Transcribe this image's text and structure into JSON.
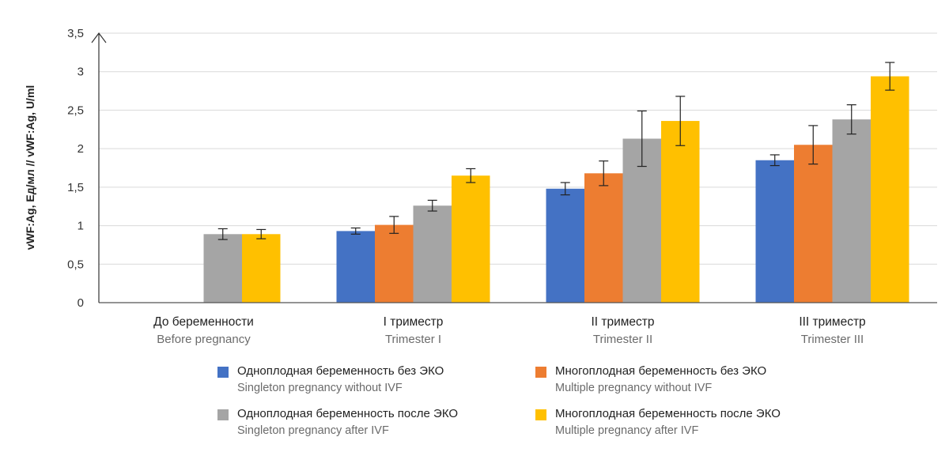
{
  "chart_data": {
    "type": "bar",
    "ylabel": "vWF:Ag, Ед/мл // vWF:Ag, U/ml",
    "ylim": [
      0,
      3.5
    ],
    "yticks": [
      "0",
      "0,5",
      "1",
      "1,5",
      "2",
      "2,5",
      "3",
      "3,5"
    ],
    "grid": true,
    "legend_position": "bottom",
    "categories": [
      {
        "ru": "До беременности",
        "en": "Before pregnancy"
      },
      {
        "ru": "I триместр",
        "en": "Trimester I"
      },
      {
        "ru": "II триместр",
        "en": "Trimester II"
      },
      {
        "ru": "III триместр",
        "en": "Trimester III"
      }
    ],
    "series": [
      {
        "name": "Одноплодная беременность без ЭКО",
        "name_en": "Singleton pregnancy without IVF",
        "color": "#4472c4",
        "values": [
          null,
          0.93,
          1.48,
          1.85
        ],
        "errors": [
          null,
          0.04,
          0.08,
          0.07
        ]
      },
      {
        "name": "Многоплодная беременность без ЭКО",
        "name_en": "Multiple pregnancy without IVF",
        "color": "#ed7d31",
        "values": [
          null,
          1.01,
          1.68,
          2.05
        ],
        "errors": [
          null,
          0.11,
          0.16,
          0.25
        ]
      },
      {
        "name": "Одноплодная беременность после ЭКО",
        "name_en": "Singleton pregnancy after IVF",
        "color": "#a5a5a5",
        "values": [
          0.89,
          1.26,
          2.13,
          2.38
        ],
        "errors": [
          0.07,
          0.07,
          0.36,
          0.19
        ]
      },
      {
        "name": "Многоплодная беременность после ЭКО",
        "name_en": "Multiple pregnancy after IVF",
        "color": "#ffc000",
        "values": [
          0.89,
          1.65,
          2.36,
          2.94
        ],
        "errors": [
          0.06,
          0.09,
          0.32,
          0.18
        ]
      }
    ]
  }
}
